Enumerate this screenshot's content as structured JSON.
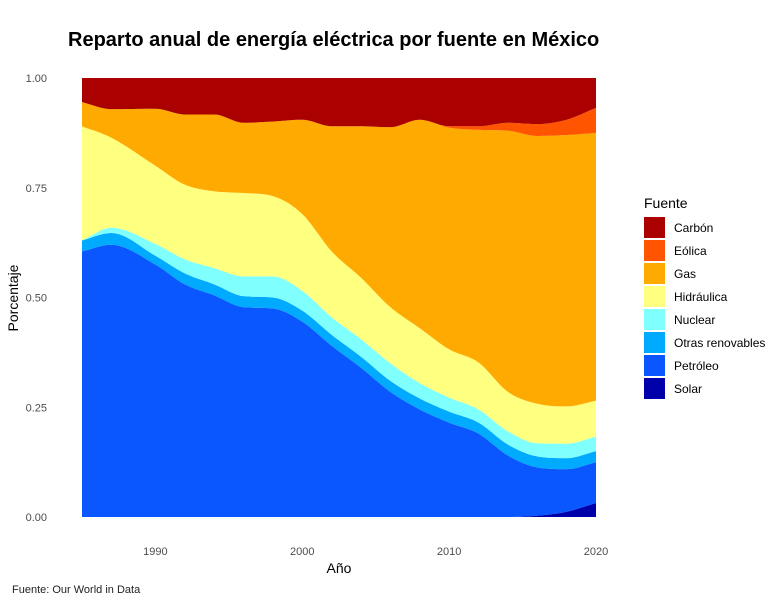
{
  "chart_data": {
    "type": "area",
    "stacked": true,
    "normalized": true,
    "title": "Reparto anual de energía eléctrica por fuente en México",
    "xlabel": "Año",
    "ylabel": "Porcentaje",
    "caption": "Fuente: Our World in Data",
    "legend_title": "Fuente",
    "legend_position": "right",
    "grid": false,
    "xlim": [
      1985,
      2020
    ],
    "ylim": [
      0,
      1
    ],
    "x_ticks": [
      1990,
      2000,
      2010,
      2020
    ],
    "x_tick_labels": [
      "1990",
      "2000",
      "2010",
      "2020"
    ],
    "y_ticks": [
      0,
      0.25,
      0.5,
      0.75,
      1
    ],
    "y_tick_labels": [
      "0.00",
      "0.25",
      "0.50",
      "0.75",
      "1.00"
    ],
    "x": [
      1985,
      1987,
      1990,
      1992,
      1994,
      1996,
      1998,
      2000,
      2002,
      2004,
      2006,
      2008,
      2010,
      2012,
      2014,
      2016,
      2018,
      2020
    ],
    "series": [
      {
        "name": "Solar",
        "color": "#0000aa",
        "values": [
          0,
          0,
          0,
          0,
          0,
          0,
          0,
          0,
          0,
          0,
          0,
          0,
          0,
          0,
          0,
          0.003,
          0.012,
          0.032
        ]
      },
      {
        "name": "Petróleo",
        "color": "#0a57ff",
        "values": [
          0.605,
          0.62,
          0.575,
          0.53,
          0.505,
          0.478,
          0.475,
          0.445,
          0.39,
          0.34,
          0.285,
          0.245,
          0.215,
          0.19,
          0.14,
          0.11,
          0.097,
          0.093
        ]
      },
      {
        "name": "Otras renovables",
        "color": "#00aaff",
        "values": [
          0.025,
          0.027,
          0.02,
          0.025,
          0.025,
          0.025,
          0.025,
          0.025,
          0.025,
          0.025,
          0.025,
          0.025,
          0.025,
          0.025,
          0.025,
          0.025,
          0.025,
          0.025
        ]
      },
      {
        "name": "Nuclear",
        "color": "#80ffff",
        "values": [
          0,
          0.012,
          0.027,
          0.032,
          0.037,
          0.045,
          0.048,
          0.045,
          0.04,
          0.04,
          0.04,
          0.035,
          0.032,
          0.03,
          0.03,
          0.03,
          0.033,
          0.033
        ]
      },
      {
        "name": "Hidráulica",
        "color": "#ffff80",
        "values": [
          0.26,
          0.205,
          0.178,
          0.17,
          0.175,
          0.19,
          0.183,
          0.175,
          0.15,
          0.14,
          0.128,
          0.125,
          0.11,
          0.107,
          0.09,
          0.09,
          0.085,
          0.082
        ]
      },
      {
        "name": "Gas",
        "color": "#ffaa00",
        "values": [
          0.055,
          0.065,
          0.13,
          0.16,
          0.175,
          0.16,
          0.17,
          0.215,
          0.285,
          0.345,
          0.41,
          0.475,
          0.505,
          0.53,
          0.595,
          0.61,
          0.618,
          0.61
        ]
      },
      {
        "name": "Eólica",
        "color": "#ff5500",
        "values": [
          0,
          0,
          0,
          0,
          0,
          0,
          0,
          0,
          0,
          0,
          0,
          0,
          0.003,
          0.008,
          0.018,
          0.027,
          0.035,
          0.057
        ]
      },
      {
        "name": "Carbón",
        "color": "#aa0000",
        "values": [
          0.055,
          0.071,
          0.07,
          0.083,
          0.083,
          0.102,
          0.099,
          0.095,
          0.11,
          0.11,
          0.112,
          0.095,
          0.11,
          0.11,
          0.102,
          0.105,
          0.095,
          0.068
        ]
      }
    ],
    "legend_order": [
      "Carbón",
      "Eólica",
      "Gas",
      "Hidráulica",
      "Nuclear",
      "Otras renovables",
      "Petróleo",
      "Solar"
    ]
  }
}
